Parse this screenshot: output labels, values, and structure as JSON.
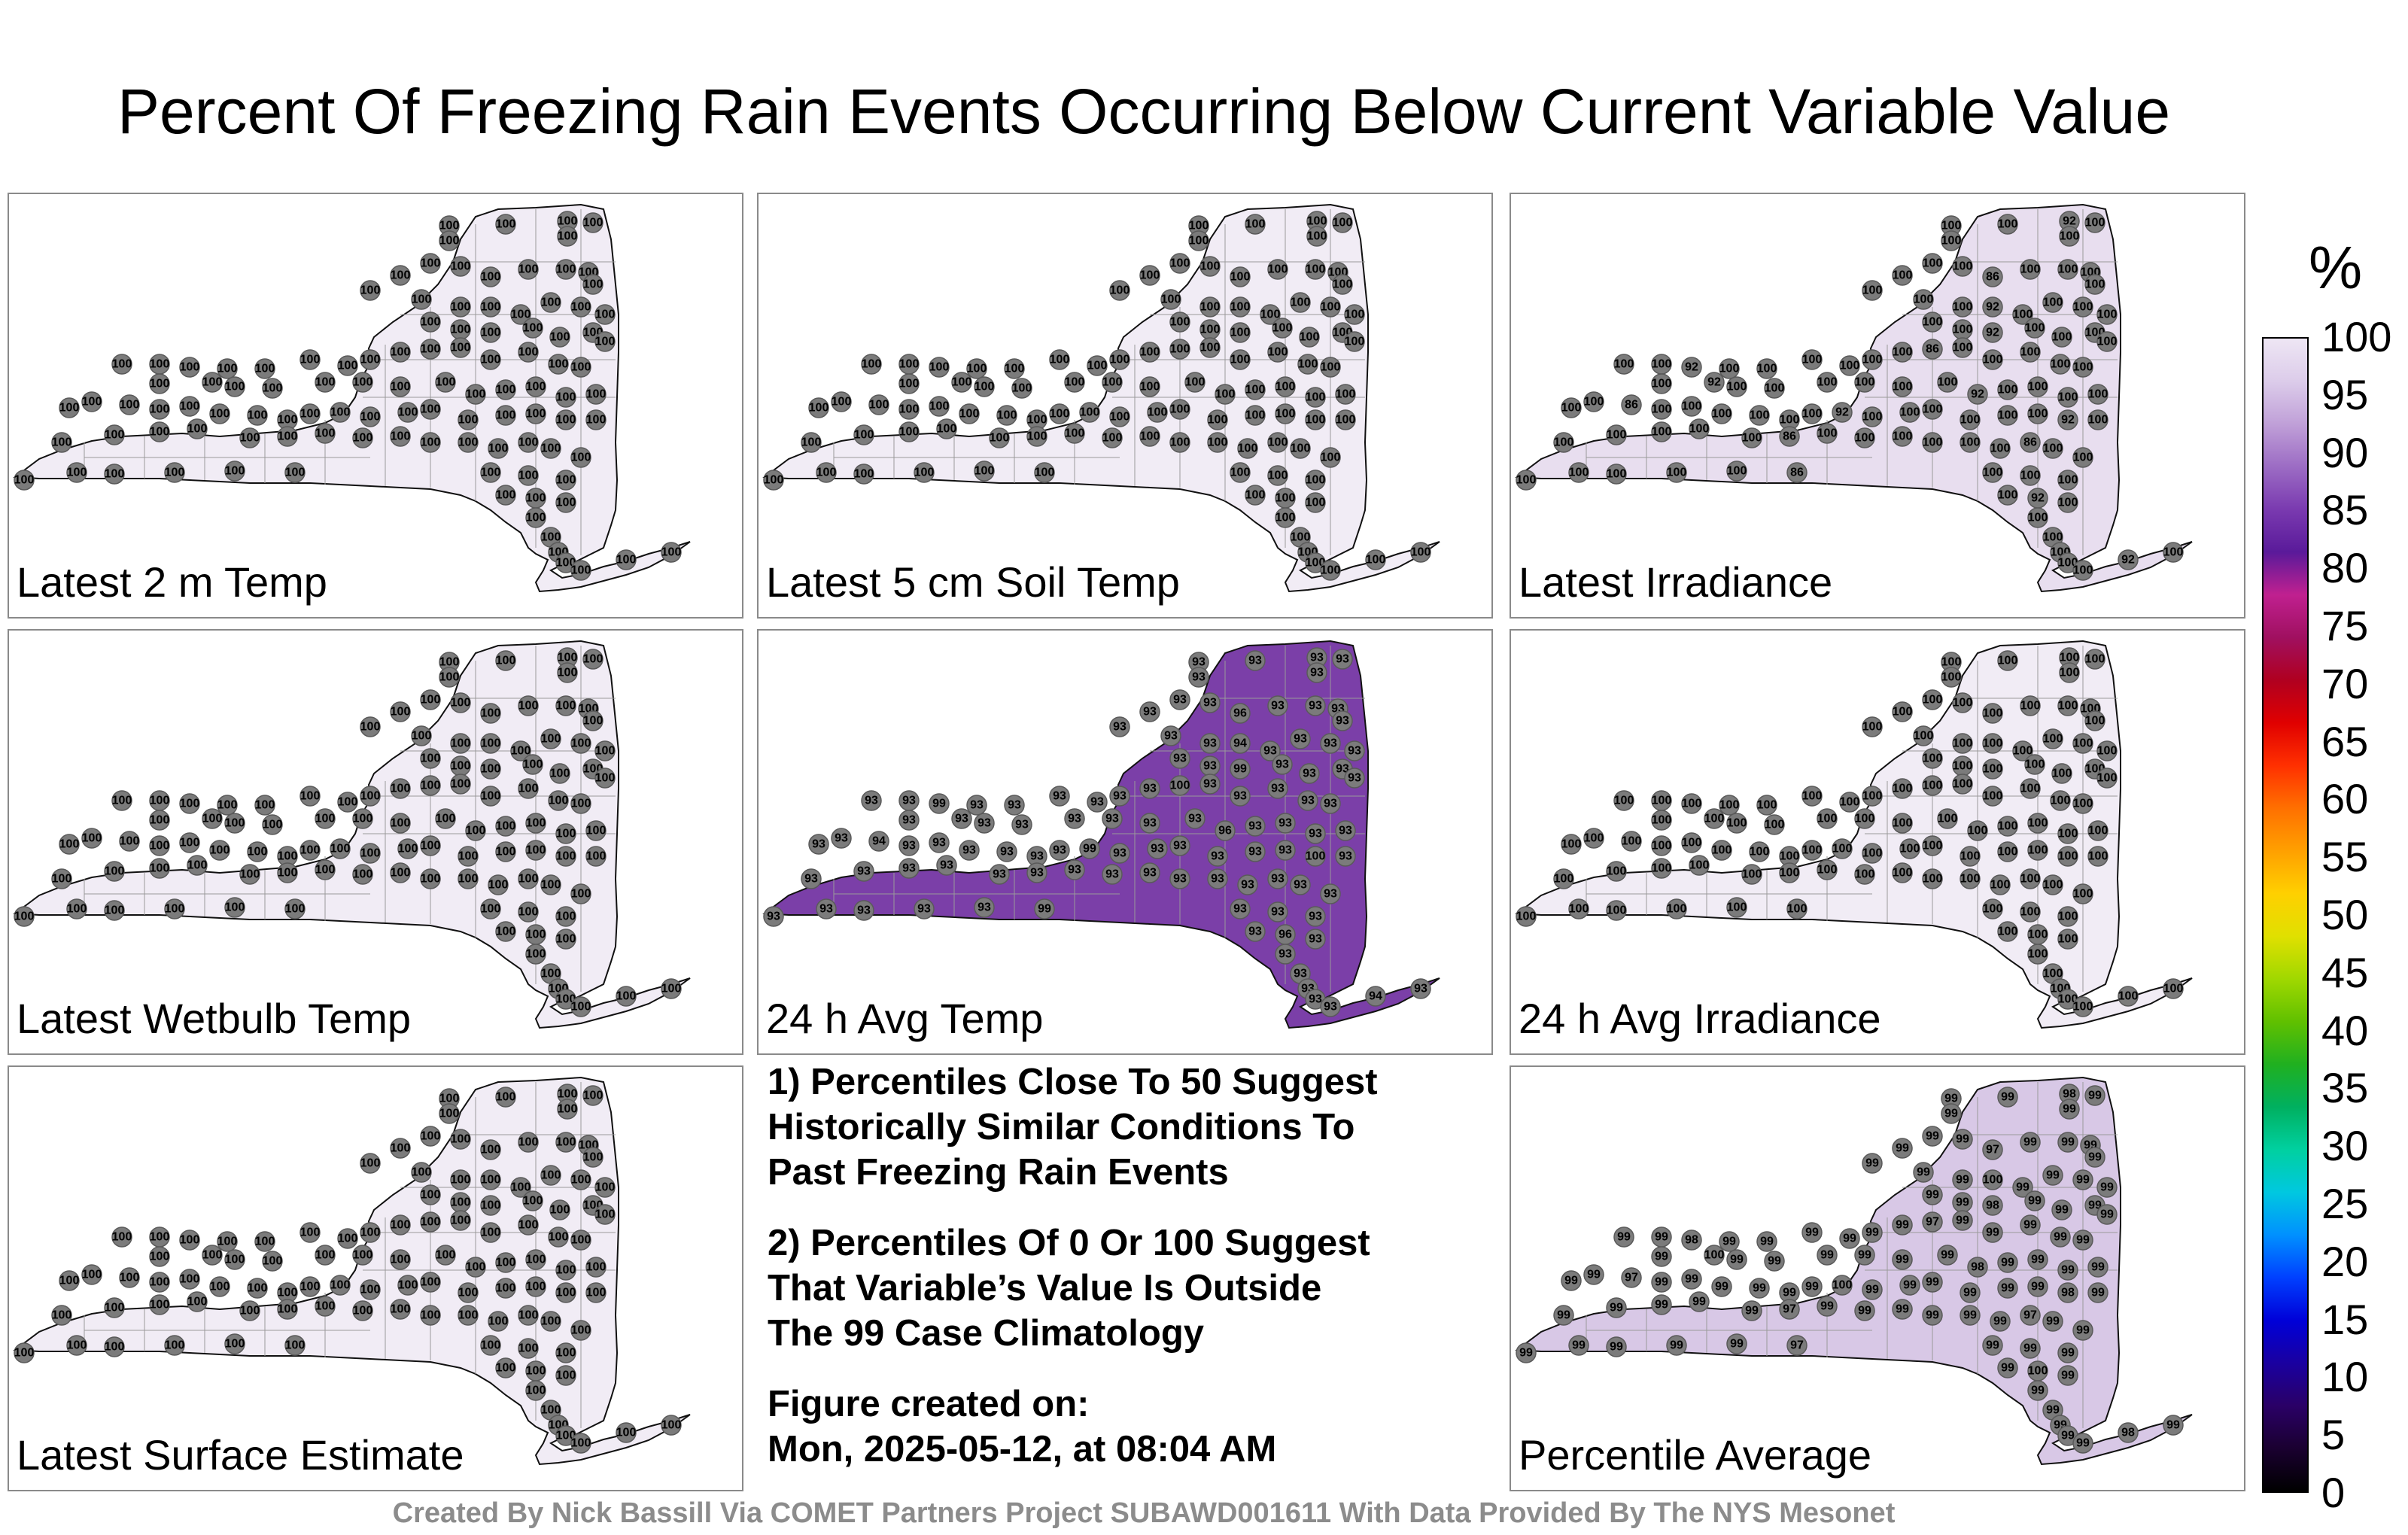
{
  "title": "Percent Of Freezing Rain Events Occurring Below Current Variable Value",
  "unit_label": "%",
  "colorbar": {
    "ticks": [
      "100",
      "95",
      "90",
      "85",
      "80",
      "75",
      "70",
      "65",
      "60",
      "55",
      "50",
      "45",
      "40",
      "35",
      "30",
      "25",
      "20",
      "15",
      "10",
      "5",
      "0"
    ],
    "colors": [
      "#000000",
      "#1a0030",
      "#2a0066",
      "#1a00a0",
      "#0000d8",
      "#0040ff",
      "#0090ff",
      "#00c8e0",
      "#00d0a0",
      "#00b060",
      "#20b020",
      "#60c000",
      "#a0d800",
      "#e0e000",
      "#ffd000",
      "#ffa000",
      "#ff7000",
      "#ff3000",
      "#e00000",
      "#b00020",
      "#a01060",
      "#c02090",
      "#5a1a9a",
      "#7a3ab0",
      "#9c6cc4",
      "#c0a0d8",
      "#dcccea",
      "#eee6f4"
    ]
  },
  "panels": [
    {
      "label": "Latest 2 m Temp",
      "station_value": "100",
      "fill": "#f1ecf5"
    },
    {
      "label": "Latest 5 cm Soil Temp",
      "station_value": "100",
      "fill": "#f1ecf5"
    },
    {
      "label": "Latest Irradiance",
      "station_value": "100",
      "fill": "#e8deef",
      "special_values": [
        "92",
        "86",
        "92"
      ]
    },
    {
      "label": "Latest Wetbulb Temp",
      "station_value": "100",
      "fill": "#f1ecf5"
    },
    {
      "label": "24 h Avg Temp",
      "station_value": "93",
      "fill": "#7b3fa8",
      "special_values": [
        "93",
        "96",
        "94",
        "99",
        "100"
      ]
    },
    {
      "label": "24 h Avg Irradiance",
      "station_value": "100",
      "fill": "#f1ecf5"
    },
    {
      "label": "Latest Surface Estimate",
      "station_value": "100",
      "fill": "#f1ecf5"
    },
    {
      "label": "Percentile Average",
      "station_value": "99",
      "fill": "#d8c8e6",
      "special_values": [
        "98",
        "97",
        "100"
      ]
    }
  ],
  "notes": {
    "note1": "1) Percentiles Close To 50 Suggest\nHistorically Similar Conditions To\nPast Freezing Rain Events",
    "note2": "2) Percentiles Of 0 Or 100 Suggest\nThat Variable’s Value Is Outside\nThe 99 Case Climatology",
    "created": "Figure created on:\nMon, 2025-05-12, at 08:04 AM"
  },
  "footer": "Created By Nick Bassill Via COMET Partners Project SUBAWD001611 With Data Provided By The NYS Mesonet"
}
